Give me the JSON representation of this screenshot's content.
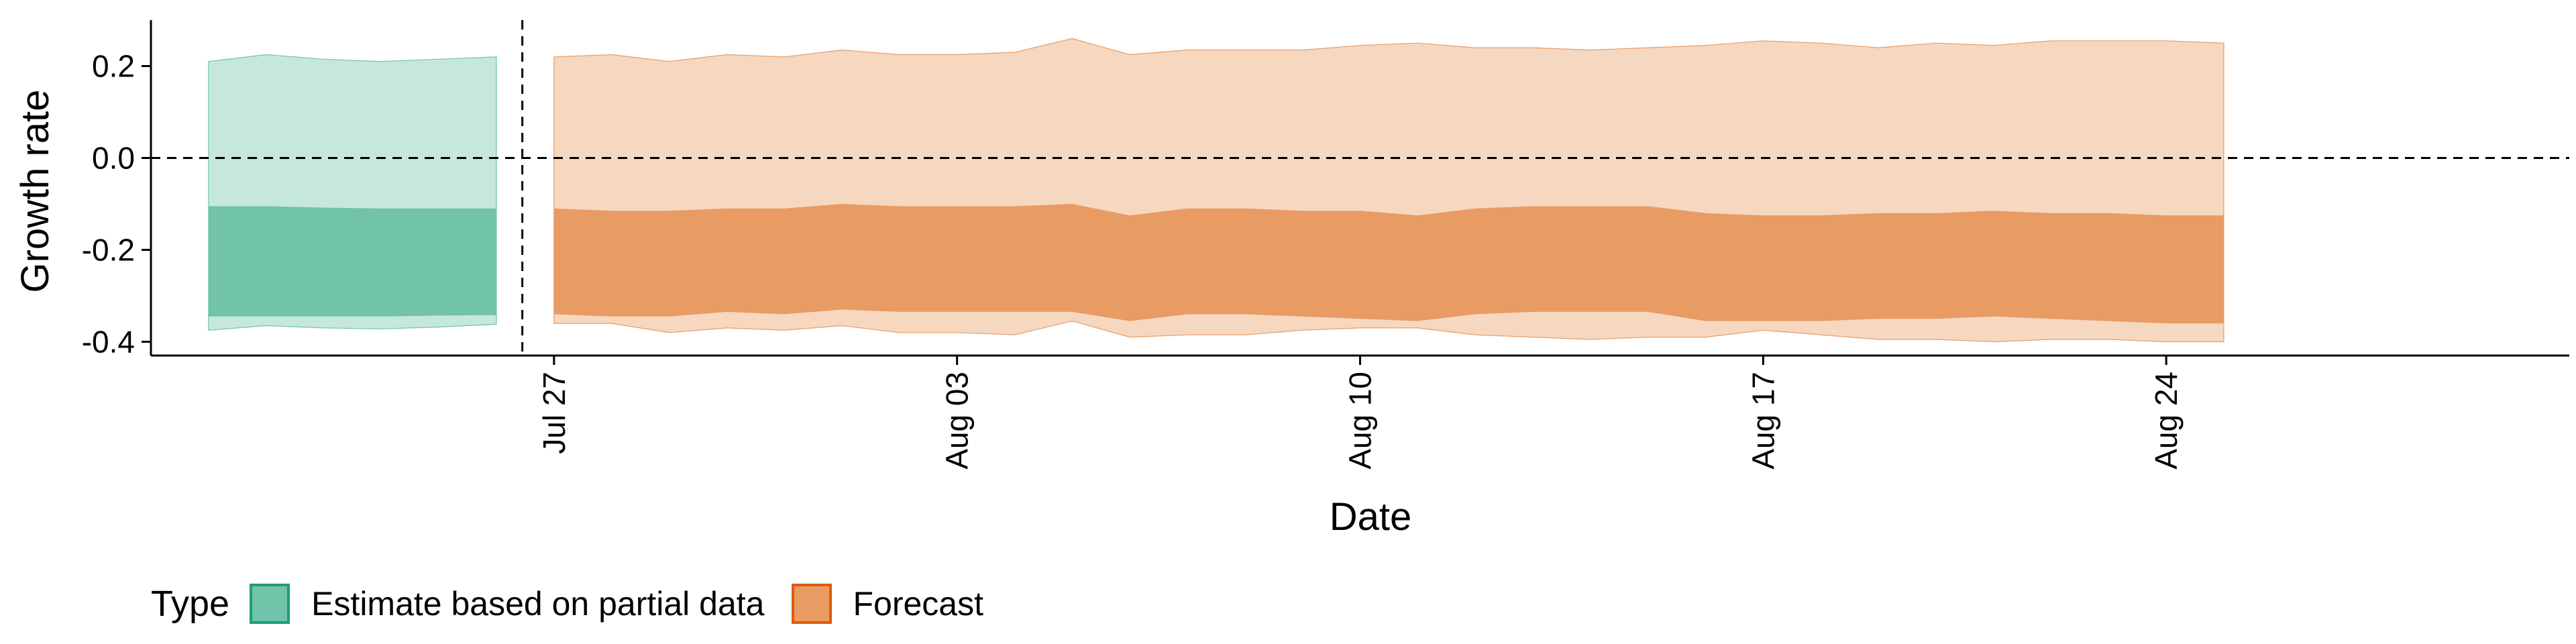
{
  "chart_data": {
    "type": "area",
    "xlabel": "Date",
    "ylabel": "Growth rate",
    "ylim": [
      -0.43,
      0.3
    ],
    "xlim": [
      "2020-07-20",
      "2020-08-31"
    ],
    "yticks": [
      0.2,
      0.0,
      -0.2,
      -0.4
    ],
    "ytick_labels": [
      "0.2",
      "0.0",
      "-0.2",
      "-0.4"
    ],
    "xticks": [
      "2020-07-27",
      "2020-08-03",
      "2020-08-10",
      "2020-08-17",
      "2020-08-24"
    ],
    "xtick_labels": [
      "Jul 27",
      "Aug 03",
      "Aug 10",
      "Aug 17",
      "Aug 24"
    ],
    "reference_lines": {
      "horizontal_y": 0.0,
      "vertical_x": "2020-07-26"
    },
    "legend": {
      "title": "Type",
      "position": "bottom-left",
      "items": [
        {
          "label": "Estimate based on partial data",
          "fill": "#71c3aa",
          "border": "#1b9e77"
        },
        {
          "label": "Forecast",
          "fill": "#e89b63",
          "border": "#d95f02"
        }
      ]
    },
    "series": [
      {
        "name": "Estimate based on partial data",
        "x": [
          "2020-07-21",
          "2020-07-22",
          "2020-07-23",
          "2020-07-24",
          "2020-07-25",
          "2020-07-26"
        ],
        "upper_90": [
          0.21,
          0.225,
          0.215,
          0.21,
          0.215,
          0.22
        ],
        "upper_50": [
          -0.105,
          -0.105,
          -0.108,
          -0.11,
          -0.11,
          -0.11
        ],
        "lower_50": [
          -0.345,
          -0.345,
          -0.345,
          -0.345,
          -0.343,
          -0.342
        ],
        "lower_90": [
          -0.375,
          -0.365,
          -0.37,
          -0.372,
          -0.368,
          -0.362
        ],
        "color_outer": "#c6e7dd",
        "color_inner": "#71c3aa",
        "edge": "#1b9e77"
      },
      {
        "name": "Forecast",
        "x": [
          "2020-07-27",
          "2020-07-28",
          "2020-07-29",
          "2020-07-30",
          "2020-07-31",
          "2020-08-01",
          "2020-08-02",
          "2020-08-03",
          "2020-08-04",
          "2020-08-05",
          "2020-08-06",
          "2020-08-07",
          "2020-08-08",
          "2020-08-09",
          "2020-08-10",
          "2020-08-11",
          "2020-08-12",
          "2020-08-13",
          "2020-08-14",
          "2020-08-15",
          "2020-08-16",
          "2020-08-17",
          "2020-08-18",
          "2020-08-19",
          "2020-08-20",
          "2020-08-21",
          "2020-08-22",
          "2020-08-23",
          "2020-08-24",
          "2020-08-25"
        ],
        "upper_90": [
          0.22,
          0.225,
          0.21,
          0.225,
          0.22,
          0.235,
          0.225,
          0.225,
          0.23,
          0.26,
          0.225,
          0.235,
          0.235,
          0.235,
          0.245,
          0.25,
          0.24,
          0.24,
          0.235,
          0.24,
          0.245,
          0.255,
          0.25,
          0.24,
          0.25,
          0.245,
          0.255,
          0.255,
          0.255,
          0.25
        ],
        "upper_50": [
          -0.11,
          -0.115,
          -0.115,
          -0.11,
          -0.11,
          -0.1,
          -0.105,
          -0.105,
          -0.105,
          -0.1,
          -0.125,
          -0.11,
          -0.11,
          -0.115,
          -0.115,
          -0.125,
          -0.11,
          -0.105,
          -0.105,
          -0.105,
          -0.12,
          -0.125,
          -0.125,
          -0.12,
          -0.12,
          -0.115,
          -0.12,
          -0.12,
          -0.125,
          -0.125
        ],
        "lower_50": [
          -0.34,
          -0.345,
          -0.345,
          -0.335,
          -0.34,
          -0.33,
          -0.335,
          -0.335,
          -0.335,
          -0.335,
          -0.355,
          -0.34,
          -0.34,
          -0.345,
          -0.35,
          -0.355,
          -0.34,
          -0.335,
          -0.335,
          -0.335,
          -0.355,
          -0.355,
          -0.355,
          -0.35,
          -0.35,
          -0.345,
          -0.35,
          -0.355,
          -0.36,
          -0.36
        ],
        "lower_90": [
          -0.36,
          -0.36,
          -0.38,
          -0.37,
          -0.375,
          -0.365,
          -0.38,
          -0.38,
          -0.385,
          -0.355,
          -0.39,
          -0.385,
          -0.385,
          -0.375,
          -0.37,
          -0.37,
          -0.385,
          -0.39,
          -0.395,
          -0.39,
          -0.39,
          -0.375,
          -0.385,
          -0.395,
          -0.395,
          -0.4,
          -0.395,
          -0.395,
          -0.4,
          -0.4
        ],
        "color_outer": "#f6d7c0",
        "color_inner": "#e89b63",
        "edge": "#d95f02"
      }
    ]
  }
}
